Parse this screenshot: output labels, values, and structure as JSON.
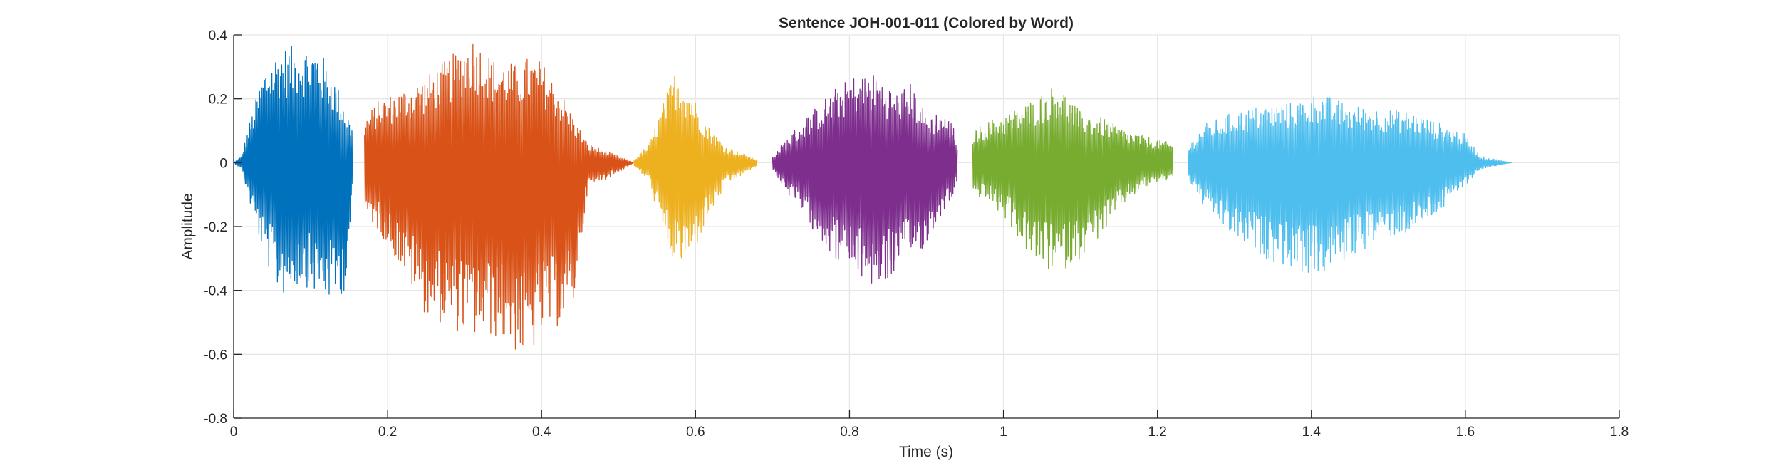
{
  "chart_data": {
    "type": "line",
    "title": "Sentence JOH-001-011 (Colored by Word)",
    "xlabel": "Time (s)",
    "ylabel": "Amplitude",
    "xlim": [
      0,
      1.8
    ],
    "ylim": [
      -0.8,
      0.4
    ],
    "xticks": [
      0,
      0.2,
      0.4,
      0.6,
      0.8,
      1,
      1.2,
      1.4,
      1.6,
      1.8
    ],
    "xtick_labels": [
      "0",
      "0.2",
      "0.4",
      "0.6",
      "0.8",
      "1",
      "1.2",
      "1.4",
      "1.6",
      "1.8"
    ],
    "yticks": [
      -0.8,
      -0.6,
      -0.4,
      -0.2,
      0,
      0.2,
      0.4
    ],
    "ytick_labels": [
      "-0.8",
      "-0.6",
      "-0.4",
      "-0.2",
      "0",
      "0.2",
      "0.4"
    ],
    "grid": true,
    "legend": false,
    "series": [
      {
        "color": "#0072BD",
        "x_range": [
          0.0,
          0.155
        ],
        "envelope": [
          {
            "t": 0.0,
            "max": 0.0,
            "min": 0.0
          },
          {
            "t": 0.01,
            "max": 0.02,
            "min": -0.02
          },
          {
            "t": 0.02,
            "max": 0.12,
            "min": -0.12
          },
          {
            "t": 0.04,
            "max": 0.3,
            "min": -0.3
          },
          {
            "t": 0.06,
            "max": 0.36,
            "min": -0.42
          },
          {
            "t": 0.09,
            "max": 0.37,
            "min": -0.38
          },
          {
            "t": 0.11,
            "max": 0.36,
            "min": -0.42
          },
          {
            "t": 0.13,
            "max": 0.27,
            "min": -0.44
          },
          {
            "t": 0.145,
            "max": 0.18,
            "min": -0.4
          },
          {
            "t": 0.155,
            "max": 0.1,
            "min": -0.1
          }
        ]
      },
      {
        "color": "#D95319",
        "x_range": [
          0.17,
          0.52
        ],
        "envelope": [
          {
            "t": 0.17,
            "max": 0.14,
            "min": -0.16
          },
          {
            "t": 0.19,
            "max": 0.2,
            "min": -0.22
          },
          {
            "t": 0.22,
            "max": 0.23,
            "min": -0.34
          },
          {
            "t": 0.25,
            "max": 0.27,
            "min": -0.48
          },
          {
            "t": 0.29,
            "max": 0.35,
            "min": -0.53
          },
          {
            "t": 0.31,
            "max": 0.4,
            "min": -0.55
          },
          {
            "t": 0.34,
            "max": 0.32,
            "min": -0.55
          },
          {
            "t": 0.37,
            "max": 0.31,
            "min": -0.6
          },
          {
            "t": 0.38,
            "max": 0.33,
            "min": -0.63
          },
          {
            "t": 0.4,
            "max": 0.32,
            "min": -0.55
          },
          {
            "t": 0.43,
            "max": 0.2,
            "min": -0.5
          },
          {
            "t": 0.44,
            "max": 0.15,
            "min": -0.48
          },
          {
            "t": 0.46,
            "max": 0.06,
            "min": -0.08
          },
          {
            "t": 0.5,
            "max": 0.02,
            "min": -0.03
          },
          {
            "t": 0.52,
            "max": 0.0,
            "min": 0.0
          }
        ]
      },
      {
        "color": "#EDB120",
        "x_range": [
          0.52,
          0.68
        ],
        "envelope": [
          {
            "t": 0.52,
            "max": 0.01,
            "min": -0.01
          },
          {
            "t": 0.54,
            "max": 0.06,
            "min": -0.06
          },
          {
            "t": 0.56,
            "max": 0.2,
            "min": -0.25
          },
          {
            "t": 0.575,
            "max": 0.3,
            "min": -0.33
          },
          {
            "t": 0.595,
            "max": 0.22,
            "min": -0.3
          },
          {
            "t": 0.615,
            "max": 0.12,
            "min": -0.18
          },
          {
            "t": 0.64,
            "max": 0.05,
            "min": -0.07
          },
          {
            "t": 0.68,
            "max": 0.01,
            "min": -0.01
          }
        ]
      },
      {
        "color": "#7E2F8E",
        "x_range": [
          0.7,
          0.94
        ],
        "envelope": [
          {
            "t": 0.7,
            "max": 0.02,
            "min": -0.02
          },
          {
            "t": 0.72,
            "max": 0.08,
            "min": -0.1
          },
          {
            "t": 0.75,
            "max": 0.16,
            "min": -0.2
          },
          {
            "t": 0.78,
            "max": 0.23,
            "min": -0.3
          },
          {
            "t": 0.81,
            "max": 0.28,
            "min": -0.36
          },
          {
            "t": 0.835,
            "max": 0.28,
            "min": -0.4
          },
          {
            "t": 0.86,
            "max": 0.22,
            "min": -0.35
          },
          {
            "t": 0.88,
            "max": 0.25,
            "min": -0.3
          },
          {
            "t": 0.9,
            "max": 0.15,
            "min": -0.26
          },
          {
            "t": 0.92,
            "max": 0.16,
            "min": -0.16
          },
          {
            "t": 0.935,
            "max": 0.12,
            "min": -0.1
          },
          {
            "t": 0.94,
            "max": 0.06,
            "min": -0.05
          }
        ]
      },
      {
        "color": "#77AC30",
        "x_range": [
          0.96,
          1.22
        ],
        "envelope": [
          {
            "t": 0.96,
            "max": 0.1,
            "min": -0.1
          },
          {
            "t": 0.98,
            "max": 0.13,
            "min": -0.12
          },
          {
            "t": 1.01,
            "max": 0.16,
            "min": -0.2
          },
          {
            "t": 1.04,
            "max": 0.2,
            "min": -0.32
          },
          {
            "t": 1.07,
            "max": 0.25,
            "min": -0.35
          },
          {
            "t": 1.1,
            "max": 0.16,
            "min": -0.3
          },
          {
            "t": 1.13,
            "max": 0.14,
            "min": -0.22
          },
          {
            "t": 1.16,
            "max": 0.1,
            "min": -0.12
          },
          {
            "t": 1.19,
            "max": 0.08,
            "min": -0.07
          },
          {
            "t": 1.22,
            "max": 0.06,
            "min": -0.05
          }
        ]
      },
      {
        "color": "#4DBEEE",
        "x_range": [
          1.24,
          1.66
        ],
        "envelope": [
          {
            "t": 1.24,
            "max": 0.05,
            "min": -0.05
          },
          {
            "t": 1.26,
            "max": 0.12,
            "min": -0.14
          },
          {
            "t": 1.3,
            "max": 0.16,
            "min": -0.24
          },
          {
            "t": 1.34,
            "max": 0.18,
            "min": -0.3
          },
          {
            "t": 1.38,
            "max": 0.19,
            "min": -0.34
          },
          {
            "t": 1.41,
            "max": 0.22,
            "min": -0.36
          },
          {
            "t": 1.45,
            "max": 0.18,
            "min": -0.3
          },
          {
            "t": 1.49,
            "max": 0.17,
            "min": -0.24
          },
          {
            "t": 1.53,
            "max": 0.16,
            "min": -0.22
          },
          {
            "t": 1.57,
            "max": 0.12,
            "min": -0.15
          },
          {
            "t": 1.6,
            "max": 0.09,
            "min": -0.07
          },
          {
            "t": 1.62,
            "max": 0.02,
            "min": -0.02
          },
          {
            "t": 1.66,
            "max": 0.0,
            "min": 0.0
          }
        ]
      }
    ]
  }
}
